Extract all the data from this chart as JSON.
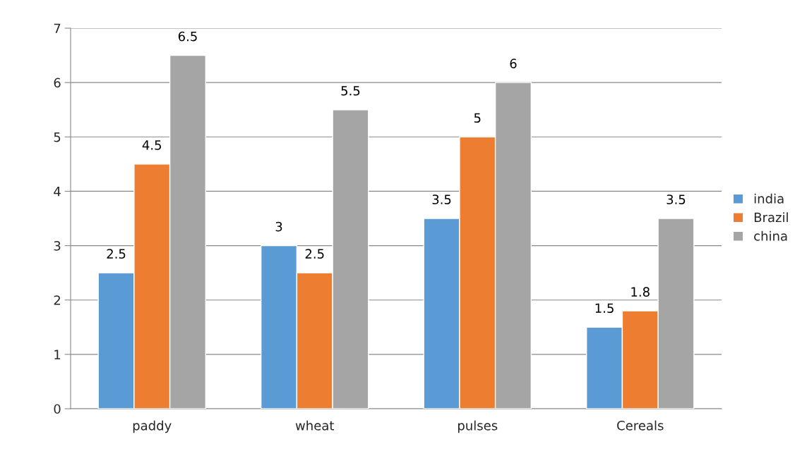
{
  "chart_data": {
    "type": "bar",
    "categories": [
      "paddy",
      "wheat",
      "pulses",
      "Cereals"
    ],
    "series": [
      {
        "name": "india",
        "color": "#5b9bd5",
        "values": [
          2.5,
          3,
          3.5,
          1.5
        ]
      },
      {
        "name": "Brazil",
        "color": "#ed7d31",
        "values": [
          4.5,
          2.5,
          5,
          1.8
        ]
      },
      {
        "name": "china",
        "color": "#a5a5a5",
        "values": [
          6.5,
          5.5,
          6,
          3.5
        ]
      }
    ],
    "ylim": [
      0,
      7
    ],
    "yticks": [
      0,
      1,
      2,
      3,
      4,
      5,
      6,
      7
    ],
    "grid": "y",
    "legend": "right",
    "data_labels": true
  }
}
